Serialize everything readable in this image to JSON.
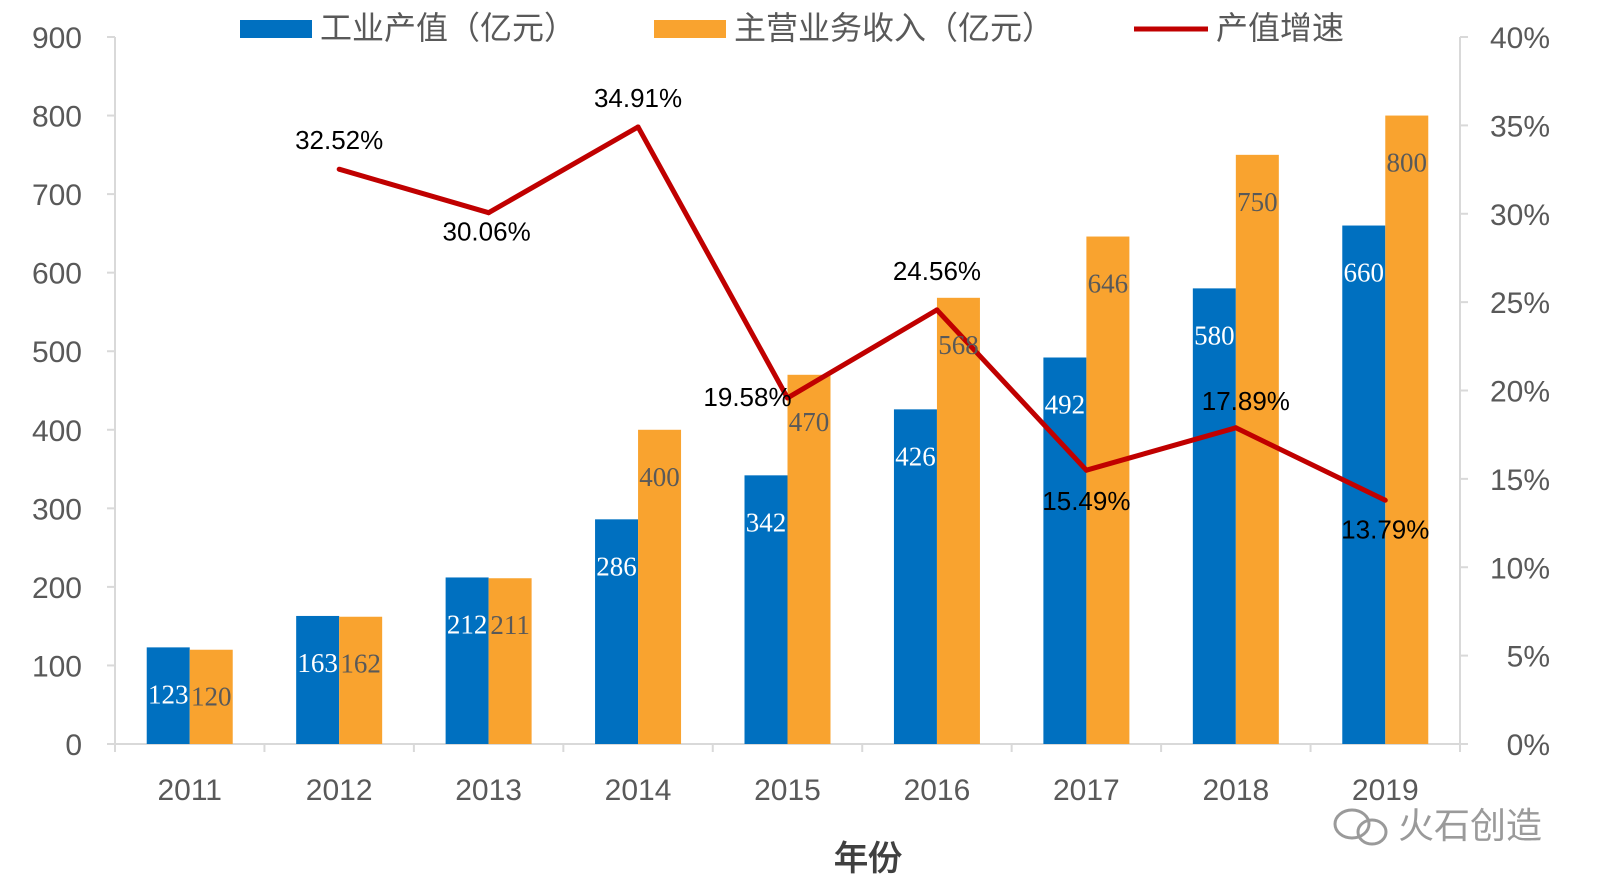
{
  "colors": {
    "output": "#0070C0",
    "revenue": "#F9A32F",
    "growth": "#C00000",
    "axis_line": "#D9D9D9",
    "text": "#595959"
  },
  "watermark": "火石创造",
  "chart_data": {
    "type": "bar",
    "categories": [
      "2011",
      "2012",
      "2013",
      "2014",
      "2015",
      "2016",
      "2017",
      "2018",
      "2019"
    ],
    "xlabel": "年份",
    "series": [
      {
        "name": "工业产值（亿元）",
        "type": "bar",
        "axis": "left",
        "values": [
          123,
          163,
          212,
          286,
          342,
          426,
          492,
          580,
          660
        ],
        "labels": [
          "123",
          "163",
          "212",
          "286",
          "342",
          "426",
          "492",
          "580",
          "660"
        ]
      },
      {
        "name": "主营业务收入（亿元）",
        "type": "bar",
        "axis": "left",
        "values": [
          120,
          162,
          211,
          400,
          470,
          568,
          646,
          750,
          800
        ],
        "labels": [
          "120",
          "162",
          "211",
          "400",
          "470",
          "568",
          "646",
          "750",
          "800"
        ]
      },
      {
        "name": "产值增速",
        "type": "line",
        "axis": "right",
        "values": [
          null,
          32.52,
          30.06,
          34.91,
          19.58,
          24.56,
          15.49,
          17.89,
          13.79
        ],
        "labels": [
          "",
          "32.52%",
          "30.06%",
          "34.91%",
          "19.58%",
          "24.56%",
          "15.49%",
          "17.89%",
          "13.79%"
        ]
      }
    ],
    "y_left": {
      "min": 0,
      "max": 900,
      "ticks": [
        "0",
        "100",
        "200",
        "300",
        "400",
        "500",
        "600",
        "700",
        "800",
        "900"
      ]
    },
    "y_right": {
      "min": 0,
      "max": 40,
      "ticks": [
        "0%",
        "5%",
        "10%",
        "15%",
        "20%",
        "25%",
        "30%",
        "35%",
        "40%"
      ]
    },
    "grid": false,
    "legend": "top"
  }
}
